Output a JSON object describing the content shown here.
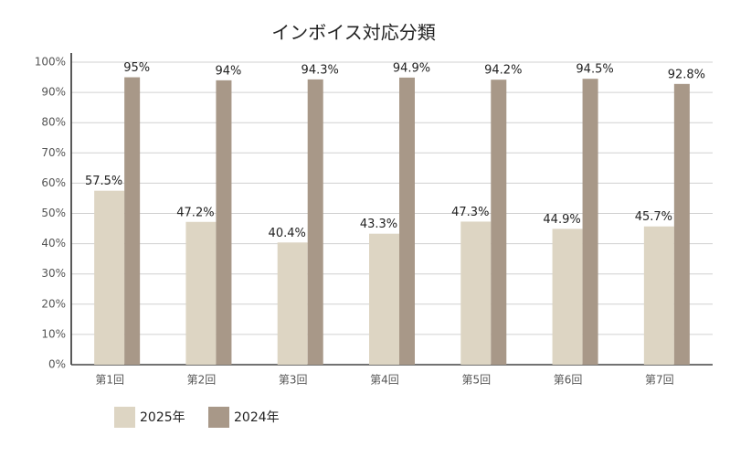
{
  "chart_data": {
    "type": "bar",
    "title": "インボイス対応分類",
    "categories": [
      "第1回",
      "第2回",
      "第3回",
      "第4回",
      "第5回",
      "第6回",
      "第7回"
    ],
    "series": [
      {
        "name": "2025年",
        "color": "#ddd5c3",
        "values": [
          57.5,
          47.2,
          40.4,
          43.3,
          47.3,
          44.9,
          45.7
        ],
        "value_labels": [
          "57.5%",
          "47.2%",
          "40.4%",
          "43.3%",
          "47.3%",
          "44.9%",
          "45.7%"
        ]
      },
      {
        "name": "2024年",
        "color": "#a89888",
        "values": [
          95,
          94,
          94.3,
          94.9,
          94.2,
          94.5,
          92.8
        ],
        "value_labels": [
          "95%",
          "94%",
          "94.3%",
          "94.9%",
          "94.2%",
          "94.5%",
          "92.8%"
        ]
      }
    ],
    "ylim": [
      0,
      100
    ],
    "yticks": [
      {
        "value": 0,
        "label": "0%"
      },
      {
        "value": 10,
        "label": "10%"
      },
      {
        "value": 20,
        "label": "20%"
      },
      {
        "value": 30,
        "label": "30%"
      },
      {
        "value": 40,
        "label": "40%"
      },
      {
        "value": 50,
        "label": "50%"
      },
      {
        "value": 60,
        "label": "60%"
      },
      {
        "value": 70,
        "label": "70%"
      },
      {
        "value": 80,
        "label": "80%"
      },
      {
        "value": 90,
        "label": "90%"
      },
      {
        "value": 100,
        "label": "100%"
      }
    ],
    "grid": true,
    "legend": "bottom"
  }
}
